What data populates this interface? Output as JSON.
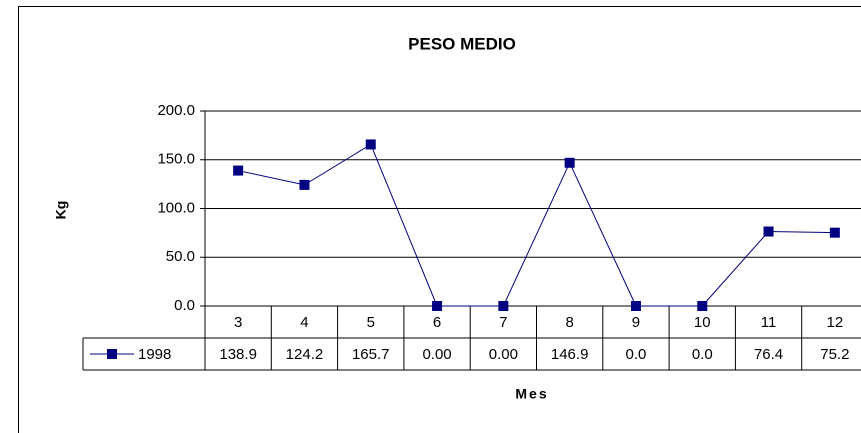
{
  "chart_data": {
    "type": "line",
    "title": "PESO MEDIO",
    "x_label": "Mes",
    "y_label": "Kg",
    "categories": [
      "3",
      "4",
      "5",
      "6",
      "7",
      "8",
      "9",
      "10",
      "11",
      "12"
    ],
    "series": [
      {
        "name": "1998",
        "color": "#000080",
        "values": [
          138.9,
          124.2,
          165.7,
          0,
          0,
          146.9,
          0,
          0,
          76.4,
          75.2
        ],
        "value_labels": [
          "138.9",
          "124.2",
          "165.7",
          "0.00",
          "0.00",
          "146.9",
          "0.0",
          "0.0",
          "76.4",
          "75.2"
        ]
      }
    ],
    "ylim": [
      0,
      200
    ],
    "yticks": [
      {
        "value": 0,
        "label": "0.0"
      },
      {
        "value": 50,
        "label": "50.0"
      },
      {
        "value": 100,
        "label": "100.0"
      },
      {
        "value": 150,
        "label": "150.0"
      },
      {
        "value": 200,
        "label": "200.0"
      }
    ],
    "grid": true,
    "data_table": true
  }
}
